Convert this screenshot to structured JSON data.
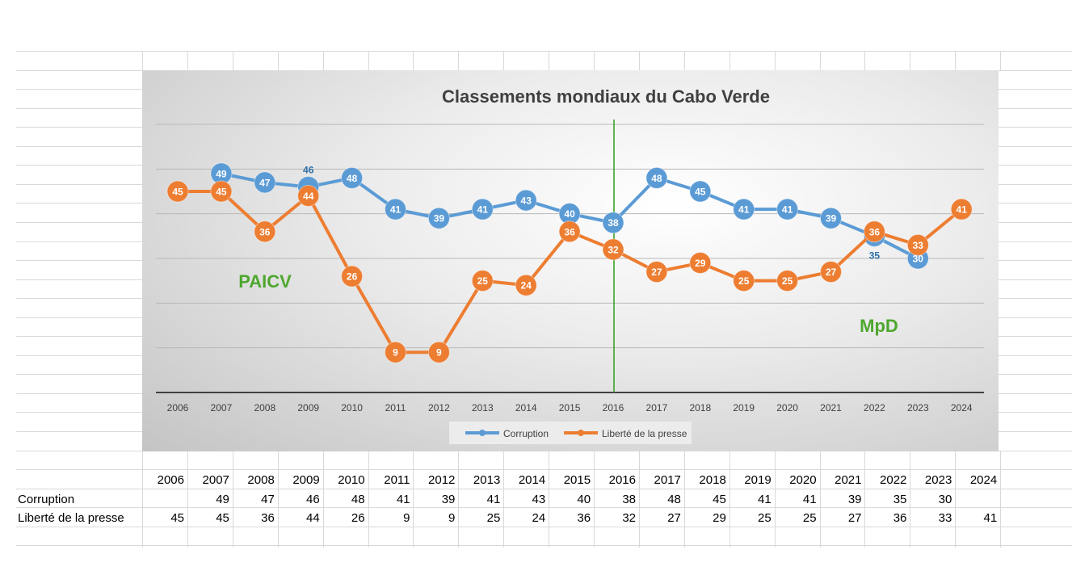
{
  "chart_data": {
    "type": "line",
    "title": "Classements mondiaux du Cabo Verde",
    "categories": [
      "2006",
      "2007",
      "2008",
      "2009",
      "2010",
      "2011",
      "2012",
      "2013",
      "2014",
      "2015",
      "2016",
      "2017",
      "2018",
      "2019",
      "2020",
      "2021",
      "2022",
      "2023",
      "2024"
    ],
    "series": [
      {
        "name": "Corruption",
        "color": "#5b9bd5",
        "values": [
          null,
          49,
          47,
          46,
          48,
          41,
          39,
          41,
          43,
          40,
          38,
          48,
          45,
          41,
          41,
          39,
          35,
          30,
          null
        ]
      },
      {
        "name": "Liberté de la presse",
        "color": "#ed7d31",
        "values": [
          45,
          45,
          36,
          44,
          26,
          9,
          9,
          25,
          24,
          36,
          32,
          27,
          29,
          25,
          25,
          27,
          36,
          33,
          41
        ]
      }
    ],
    "ylim": [
      0,
      60
    ],
    "y_gridlines": [
      10,
      20,
      30,
      40,
      50,
      60
    ],
    "grid": true,
    "legend": "bottom",
    "xlabel": "",
    "ylabel": "",
    "annotations": [
      {
        "text": "PAICV",
        "color": "#4ea72e"
      },
      {
        "text": "MpD",
        "color": "#4ea72e"
      }
    ],
    "divider_year": "2016",
    "divider_color": "#2e9e1c"
  },
  "table": {
    "header": [
      "2006",
      "2007",
      "2008",
      "2009",
      "2010",
      "2011",
      "2012",
      "2013",
      "2014",
      "2015",
      "2016",
      "2017",
      "2018",
      "2019",
      "2020",
      "2021",
      "2022",
      "2023",
      "2024"
    ],
    "rows": [
      {
        "label": "Corruption",
        "values": [
          "",
          "49",
          "47",
          "46",
          "48",
          "41",
          "39",
          "41",
          "43",
          "40",
          "38",
          "48",
          "45",
          "41",
          "41",
          "39",
          "35",
          "30",
          ""
        ]
      },
      {
        "label": "Liberté de la presse",
        "values": [
          "45",
          "45",
          "36",
          "44",
          "26",
          "9",
          "9",
          "25",
          "24",
          "36",
          "32",
          "27",
          "29",
          "25",
          "25",
          "27",
          "36",
          "33",
          "41"
        ]
      }
    ]
  }
}
